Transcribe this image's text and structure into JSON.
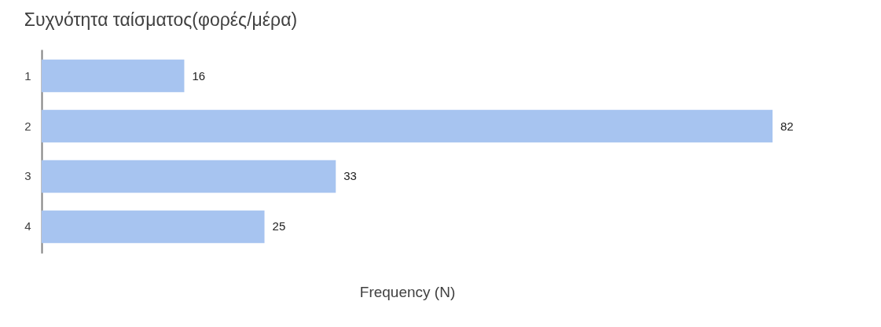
{
  "chart_data": {
    "type": "bar",
    "orientation": "horizontal",
    "title": "Συχνότητα ταίσματος(φορές/μέρα)",
    "xlabel": "Frequency (N)",
    "categories": [
      "1",
      "2",
      "3",
      "4"
    ],
    "values": [
      16,
      82,
      33,
      25
    ],
    "color": "#a7c4f0",
    "data_labels": true,
    "grid": false
  }
}
